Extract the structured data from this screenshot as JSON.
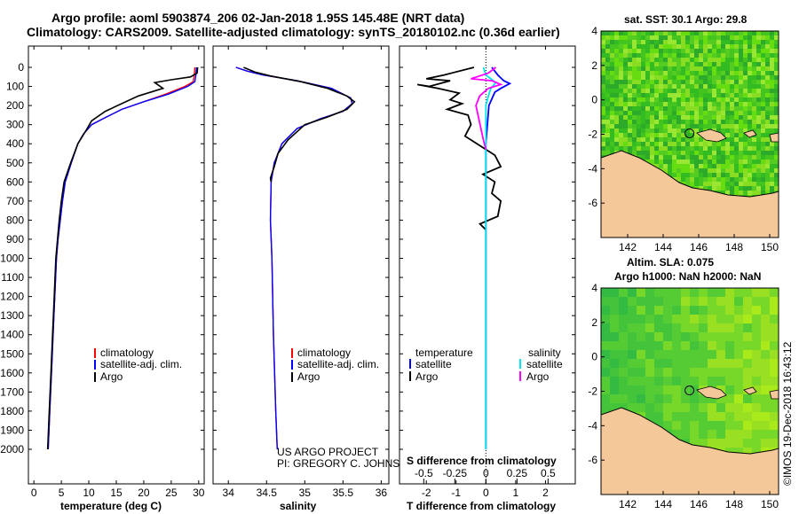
{
  "header": {
    "title_line1": "Argo profile: aoml 5903874_206 02-Jan-2018 1.95S 145.48E (NRT data)",
    "title_line2": "Climatology: CARS2009. Satellite-adjusted climatology: synTS_20180102.nc (0.36d earlier)"
  },
  "colors": {
    "climatology": "#ff0000",
    "satellite": "#0000ff",
    "argo": "#000000",
    "sat_salinity": "#00e5ee",
    "argo_salinity": "#ff00ff",
    "land": "#f5c89a",
    "sst_sea": "#44cc22",
    "sla_sea": "#66dd22"
  },
  "depth_axis": {
    "ticks": [
      "0",
      "100",
      "200",
      "300",
      "400",
      "500",
      "600",
      "700",
      "800",
      "900",
      "1000",
      "1100",
      "1200",
      "1300",
      "1400",
      "1500",
      "1600",
      "1700",
      "1800",
      "1900",
      "2000"
    ]
  },
  "chart_data": [
    {
      "type": "line",
      "name": "temperature",
      "xlabel": "temperature (deg C)",
      "xlim": [
        -1,
        31
      ],
      "ylim": [
        2080,
        0
      ],
      "x_ticks": [
        "0",
        "5",
        "10",
        "15",
        "20",
        "25",
        "30"
      ],
      "legend": [
        "climatology",
        "satellite-adj. clim.",
        "Argo"
      ],
      "series": [
        {
          "name": "climatology",
          "points": [
            [
              29.3,
              0
            ],
            [
              29.2,
              40
            ],
            [
              29,
              75
            ],
            [
              27.5,
              100
            ],
            [
              24,
              140
            ],
            [
              20,
              180
            ],
            [
              16,
              220
            ],
            [
              12.5,
              270
            ],
            [
              10.5,
              300
            ],
            [
              9,
              350
            ],
            [
              8,
              400
            ],
            [
              6.8,
              500
            ],
            [
              5.7,
              600
            ],
            [
              5.2,
              700
            ],
            [
              4.8,
              800
            ],
            [
              4.4,
              900
            ],
            [
              4.1,
              1000
            ],
            [
              3.8,
              1200
            ],
            [
              3.5,
              1400
            ],
            [
              3.2,
              1600
            ],
            [
              2.9,
              1800
            ],
            [
              2.6,
              2000
            ]
          ]
        },
        {
          "name": "satellite-adj. clim.",
          "points": [
            [
              29.6,
              0
            ],
            [
              29.5,
              40
            ],
            [
              29.3,
              75
            ],
            [
              28,
              100
            ],
            [
              24.5,
              140
            ],
            [
              20,
              180
            ],
            [
              16,
              220
            ],
            [
              12.5,
              270
            ],
            [
              10.5,
              300
            ],
            [
              9,
              350
            ],
            [
              8,
              400
            ],
            [
              6.8,
              500
            ],
            [
              5.7,
              600
            ],
            [
              5.2,
              700
            ],
            [
              4.8,
              800
            ],
            [
              4.4,
              900
            ],
            [
              4.1,
              1000
            ],
            [
              3.8,
              1200
            ],
            [
              3.5,
              1400
            ],
            [
              3.2,
              1600
            ],
            [
              2.9,
              1800
            ],
            [
              2.6,
              2000
            ]
          ]
        },
        {
          "name": "Argo",
          "points": [
            [
              29.8,
              0
            ],
            [
              29.7,
              30
            ],
            [
              28.5,
              50
            ],
            [
              25,
              65
            ],
            [
              22,
              80
            ],
            [
              23.5,
              110
            ],
            [
              19,
              150
            ],
            [
              16,
              190
            ],
            [
              13,
              230
            ],
            [
              10.5,
              280
            ],
            [
              9.5,
              330
            ],
            [
              8,
              400
            ],
            [
              6.7,
              500
            ],
            [
              5.5,
              600
            ],
            [
              5,
              700
            ],
            [
              4.6,
              800
            ],
            [
              4.3,
              900
            ],
            [
              4,
              1000
            ],
            [
              3.7,
              1200
            ],
            [
              3.4,
              1400
            ],
            [
              3.1,
              1600
            ],
            [
              2.8,
              1800
            ],
            [
              2.5,
              2000
            ]
          ]
        }
      ]
    },
    {
      "type": "line",
      "name": "salinity",
      "xlabel": "salinity",
      "xlim": [
        33.8,
        36.1
      ],
      "ylim": [
        2080,
        0
      ],
      "x_ticks": [
        "34",
        "34.5",
        "35",
        "35.5",
        "36"
      ],
      "legend": [
        "climatology",
        "satellite-adj. clim.",
        "Argo"
      ],
      "series": [
        {
          "name": "climatology",
          "points": [
            [
              34.1,
              0
            ],
            [
              34.25,
              20
            ],
            [
              34.45,
              40
            ],
            [
              34.9,
              70
            ],
            [
              35.35,
              110
            ],
            [
              35.6,
              160
            ],
            [
              35.62,
              190
            ],
            [
              35.5,
              230
            ],
            [
              35.2,
              270
            ],
            [
              34.9,
              320
            ],
            [
              34.7,
              400
            ],
            [
              34.6,
              500
            ],
            [
              34.56,
              600
            ],
            [
              34.55,
              800
            ],
            [
              34.57,
              1000
            ],
            [
              34.59,
              1400
            ],
            [
              34.62,
              1800
            ],
            [
              34.64,
              2000
            ]
          ]
        },
        {
          "name": "satellite-adj. clim.",
          "points": [
            [
              34.1,
              0
            ],
            [
              34.25,
              20
            ],
            [
              34.45,
              40
            ],
            [
              34.9,
              70
            ],
            [
              35.35,
              110
            ],
            [
              35.6,
              160
            ],
            [
              35.62,
              190
            ],
            [
              35.5,
              230
            ],
            [
              35.2,
              270
            ],
            [
              34.9,
              320
            ],
            [
              34.7,
              400
            ],
            [
              34.6,
              500
            ],
            [
              34.56,
              600
            ],
            [
              34.55,
              800
            ],
            [
              34.57,
              1000
            ],
            [
              34.59,
              1400
            ],
            [
              34.62,
              1800
            ],
            [
              34.64,
              2000
            ]
          ]
        },
        {
          "name": "Argo",
          "points": [
            [
              34.2,
              0
            ],
            [
              34.35,
              25
            ],
            [
              34.55,
              45
            ],
            [
              34.95,
              75
            ],
            [
              35.3,
              110
            ],
            [
              35.55,
              150
            ],
            [
              35.65,
              180
            ],
            [
              35.55,
              220
            ],
            [
              35.3,
              260
            ],
            [
              35.0,
              300
            ],
            [
              34.78,
              380
            ],
            [
              34.65,
              450
            ],
            [
              34.6,
              520
            ],
            [
              34.55,
              580
            ],
            [
              34.56,
              600
            ]
          ]
        }
      ]
    },
    {
      "type": "line",
      "name": "differences",
      "xlabel": "T difference from climatology",
      "xlabel_top": "S difference from climatology",
      "xlim": [
        -2.9,
        3.0
      ],
      "ylim": [
        2080,
        0
      ],
      "x_ticks": [
        "-2",
        "-1",
        "0",
        "1",
        "2"
      ],
      "x_ticks_top": [
        "-0.5",
        "-0.25",
        "0",
        "0.25",
        "0.5"
      ],
      "legend_left_title": "temperature",
      "legend_right_title": "salinity",
      "legend": [
        "satellite",
        "Argo",
        "satellite",
        "Argo"
      ],
      "series": [
        {
          "name": "T satellite",
          "points": [
            [
              0.2,
              0
            ],
            [
              0.4,
              40
            ],
            [
              0.6,
              70
            ],
            [
              0.8,
              85
            ],
            [
              0.5,
              110
            ],
            [
              0.3,
              130
            ],
            [
              0.1,
              200
            ],
            [
              0,
              400
            ],
            [
              0,
              2000
            ]
          ]
        },
        {
          "name": "T Argo",
          "points": [
            [
              -0.4,
              0
            ],
            [
              -1.4,
              40
            ],
            [
              -2.0,
              60
            ],
            [
              -1.2,
              70
            ],
            [
              -1.9,
              100
            ],
            [
              -2.3,
              90
            ],
            [
              -1.6,
              110
            ],
            [
              -0.9,
              135
            ],
            [
              -1.2,
              170
            ],
            [
              -0.8,
              190
            ],
            [
              -1.3,
              220
            ],
            [
              -0.6,
              250
            ],
            [
              -0.5,
              300
            ],
            [
              -0.7,
              360
            ],
            [
              -0.3,
              400
            ],
            [
              0.3,
              460
            ],
            [
              0.5,
              520
            ],
            [
              -0.1,
              560
            ],
            [
              0.3,
              600
            ],
            [
              0.2,
              660
            ],
            [
              0.5,
              700
            ],
            [
              0.4,
              780
            ],
            [
              -0.2,
              820
            ],
            [
              0,
              850
            ]
          ]
        },
        {
          "name": "S satellite",
          "points": [
            [
              -0.02,
              0
            ],
            [
              0,
              40
            ],
            [
              0.04,
              60
            ],
            [
              0.08,
              80
            ],
            [
              0.04,
              110
            ],
            [
              0.02,
              150
            ],
            [
              0,
              200
            ],
            [
              0,
              400
            ],
            [
              0,
              2000
            ]
          ]
        },
        {
          "name": "S Argo",
          "points": [
            [
              0.08,
              0
            ],
            [
              0.02,
              30
            ],
            [
              -0.05,
              45
            ],
            [
              -0.12,
              60
            ],
            [
              0.05,
              70
            ],
            [
              0.12,
              90
            ],
            [
              0.02,
              110
            ],
            [
              -0.05,
              150
            ],
            [
              -0.08,
              200
            ],
            [
              -0.06,
              260
            ],
            [
              -0.04,
              320
            ],
            [
              -0.02,
              380
            ],
            [
              0,
              430
            ]
          ]
        }
      ]
    },
    {
      "type": "heatmap",
      "name": "sst_map",
      "title": "sat. SST: 30.1 Argo: 29.8",
      "xlim": [
        140.5,
        150.5
      ],
      "ylim": [
        -8,
        4
      ],
      "x_ticks": [
        "142",
        "144",
        "146",
        "148",
        "150"
      ],
      "y_ticks": [
        "4",
        "2",
        "0",
        "-2",
        "-4",
        "-6"
      ],
      "marker": [
        145.48,
        -1.95
      ]
    },
    {
      "type": "heatmap",
      "name": "sla_map",
      "title": "Altim. SLA: 0.075",
      "subtitle": "Argo h1000: NaN h2000: NaN",
      "xlim": [
        140.5,
        150.5
      ],
      "ylim": [
        -8,
        4
      ],
      "x_ticks": [
        "142",
        "144",
        "146",
        "148",
        "150"
      ],
      "y_ticks": [
        "4",
        "2",
        "0",
        "-2",
        "-4",
        "-6"
      ],
      "marker": [
        145.48,
        -1.95
      ]
    }
  ],
  "annotations": {
    "project_line1": "US ARGO PROJECT",
    "project_line2": "PI: GREGORY C. JOHNSON",
    "stamp": "©IMOS 19-Dec-2018 16:43:12"
  }
}
